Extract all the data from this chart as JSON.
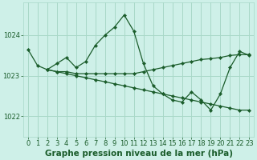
{
  "background_color": "#cef0e8",
  "grid_color": "#a8d8c8",
  "line_color": "#1a5c2a",
  "marker_color": "#1a5c2a",
  "title": "Graphe pression niveau de la mer (hPa)",
  "xlim": [
    -0.5,
    23.5
  ],
  "ylim": [
    1021.5,
    1024.8
  ],
  "yticks": [
    1022,
    1023,
    1024
  ],
  "xticks": [
    0,
    1,
    2,
    3,
    4,
    5,
    6,
    7,
    8,
    9,
    10,
    11,
    12,
    13,
    14,
    15,
    16,
    17,
    18,
    19,
    20,
    21,
    22,
    23
  ],
  "series": [
    {
      "x": [
        0,
        1,
        2,
        3,
        4,
        5,
        6,
        7,
        8,
        9,
        10,
        11,
        12,
        13,
        14,
        15,
        16,
        17,
        18,
        19,
        20,
        21,
        22,
        23
      ],
      "y": [
        1023.65,
        1023.25,
        1023.15,
        1023.3,
        1023.45,
        1023.2,
        1023.35,
        1023.75,
        1024.0,
        1024.2,
        1024.5,
        1024.1,
        1023.3,
        1022.75,
        1022.55,
        1022.4,
        1022.35,
        1022.6,
        1022.4,
        1022.15,
        1022.55,
        1023.2,
        1023.6,
        1023.5
      ]
    },
    {
      "x": [
        2,
        3,
        4,
        5,
        6,
        7,
        8,
        9,
        10,
        11,
        12,
        13,
        14,
        15,
        16,
        17,
        18,
        19,
        20,
        21,
        22,
        23
      ],
      "y": [
        1023.15,
        1023.1,
        1023.1,
        1023.05,
        1023.05,
        1023.05,
        1023.05,
        1023.05,
        1023.05,
        1023.05,
        1023.1,
        1023.15,
        1023.2,
        1023.25,
        1023.3,
        1023.35,
        1023.4,
        1023.42,
        1023.45,
        1023.5,
        1023.52,
        1023.52
      ]
    },
    {
      "x": [
        2,
        3,
        4,
        5,
        6,
        7,
        8,
        9,
        10,
        11,
        12,
        13,
        14,
        15,
        16,
        17,
        18,
        19,
        20,
        21,
        22,
        23
      ],
      "y": [
        1023.15,
        1023.1,
        1023.05,
        1023.0,
        1022.95,
        1022.9,
        1022.85,
        1022.8,
        1022.75,
        1022.7,
        1022.65,
        1022.6,
        1022.55,
        1022.5,
        1022.45,
        1022.4,
        1022.35,
        1022.3,
        1022.25,
        1022.2,
        1022.15,
        1022.15
      ]
    }
  ],
  "title_fontsize": 7.5,
  "tick_fontsize": 6.0,
  "title_color": "#1a5c2a",
  "title_fontweight": "bold"
}
